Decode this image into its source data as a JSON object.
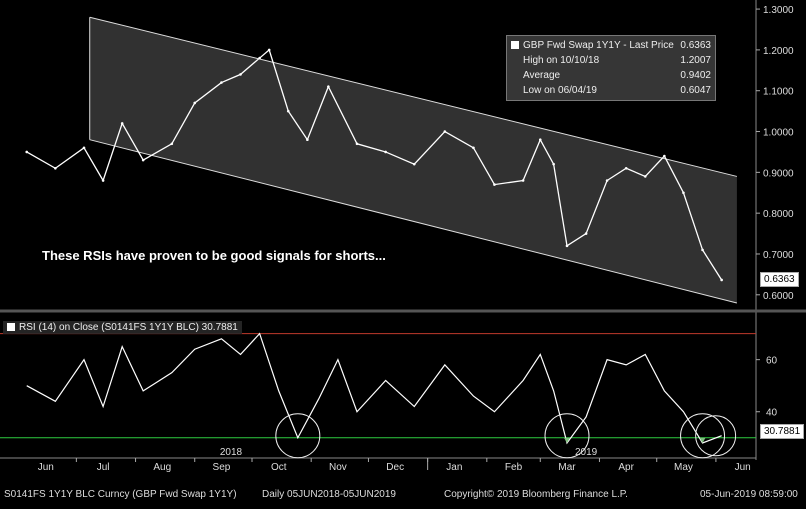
{
  "chart_data": [
    {
      "type": "line",
      "title": "GBP Fwd Swap 1Y1Y - Last Price 0.6363",
      "series": [
        {
          "name": "GBP Fwd Swap 1Y1Y - Last Price",
          "x": [
            "2018-06-05",
            "2018-06-20",
            "2018-07-05",
            "2018-07-15",
            "2018-07-25",
            "2018-08-05",
            "2018-08-20",
            "2018-09-01",
            "2018-09-15",
            "2018-09-25",
            "2018-10-05",
            "2018-10-10",
            "2018-10-20",
            "2018-10-30",
            "2018-11-10",
            "2018-11-25",
            "2018-12-10",
            "2018-12-25",
            "2019-01-10",
            "2019-01-25",
            "2019-02-05",
            "2019-02-20",
            "2019-03-01",
            "2019-03-08",
            "2019-03-15",
            "2019-03-25",
            "2019-04-05",
            "2019-04-15",
            "2019-04-25",
            "2019-05-05",
            "2019-05-15",
            "2019-05-25",
            "2019-06-04"
          ],
          "values": [
            0.95,
            0.91,
            0.96,
            0.88,
            1.02,
            0.93,
            0.97,
            1.07,
            1.12,
            1.14,
            1.18,
            1.2,
            1.05,
            0.98,
            1.11,
            0.97,
            0.95,
            0.92,
            1.0,
            0.96,
            0.87,
            0.88,
            0.98,
            0.92,
            0.72,
            0.75,
            0.88,
            0.91,
            0.89,
            0.94,
            0.85,
            0.71,
            0.6363
          ]
        }
      ],
      "stats": {
        "high": "1.2007",
        "high_date": "10/10/18",
        "average": "0.9402",
        "low": "0.6047",
        "low_date": "06/04/19",
        "last": "0.6363"
      },
      "channel": {
        "upper": [
          [
            "2018-07-08",
            1.28
          ],
          [
            "2019-06-12",
            0.89
          ]
        ],
        "lower": [
          [
            "2018-07-08",
            0.98
          ],
          [
            "2019-06-12",
            0.58
          ]
        ]
      },
      "ylim": [
        0.575,
        1.31
      ],
      "yticks": [
        "1.3000",
        "1.2000",
        "1.1000",
        "1.0000",
        "0.9000",
        "0.8000",
        "0.7000",
        "0.6000"
      ],
      "ytick_values": [
        1.3,
        1.2,
        1.1,
        1.0,
        0.9,
        0.8,
        0.7,
        0.6
      ],
      "annotation": "These RSIs have proven to be good signals for shorts...",
      "xlabel": "",
      "ylabel": ""
    },
    {
      "type": "line",
      "title": "RSI (14)  on Close (S0141FS 1Y1Y BLC) 30.7881",
      "series": [
        {
          "name": "RSI (14) on Close (S0141FS 1Y1Y BLC)",
          "x": [
            "2018-06-05",
            "2018-06-20",
            "2018-07-05",
            "2018-07-15",
            "2018-07-25",
            "2018-08-05",
            "2018-08-20",
            "2018-09-01",
            "2018-09-15",
            "2018-09-25",
            "2018-10-05",
            "2018-10-15",
            "2018-10-25",
            "2018-11-05",
            "2018-11-15",
            "2018-11-25",
            "2018-12-10",
            "2018-12-25",
            "2019-01-10",
            "2019-01-25",
            "2019-02-05",
            "2019-02-20",
            "2019-03-01",
            "2019-03-08",
            "2019-03-15",
            "2019-03-25",
            "2019-04-05",
            "2019-04-15",
            "2019-04-25",
            "2019-05-05",
            "2019-05-15",
            "2019-05-25",
            "2019-06-04"
          ],
          "values": [
            50,
            44,
            60,
            42,
            65,
            48,
            55,
            64,
            68,
            62,
            70,
            48,
            30,
            45,
            60,
            40,
            52,
            42,
            58,
            46,
            40,
            52,
            62,
            48,
            28,
            38,
            60,
            58,
            62,
            48,
            40,
            28,
            30.7881
          ]
        }
      ],
      "overbought": 70,
      "oversold": 30,
      "last": "30.7881",
      "ylim": [
        23,
        76
      ],
      "yticks": [
        "60",
        "40"
      ],
      "ytick_values": [
        60,
        40
      ]
    }
  ],
  "x_months": [
    "Jun",
    "Jul",
    "Aug",
    "Sep",
    "Oct",
    "Nov",
    "Dec",
    "Jan",
    "Feb",
    "Mar",
    "Apr",
    "May",
    "Jun"
  ],
  "x_years": [
    "2018",
    "2019"
  ],
  "legend": {
    "title": "GBP Fwd Swap 1Y1Y - Last Price",
    "title_value": "0.6363",
    "rows": [
      {
        "label": "High on 10/10/18",
        "value": "1.2007"
      },
      {
        "label": "Average",
        "value": "0.9402"
      },
      {
        "label": "Low on 06/04/19",
        "value": "0.6047"
      }
    ]
  },
  "footer": {
    "ticker": "S0141FS 1Y1Y BLC Curncy (GBP Fwd Swap 1Y1Y)",
    "range": "Daily 05JUN2018-05JUN2019",
    "copyright": "Copyright© 2019 Bloomberg Finance L.P.",
    "timestamp": "05-Jun-2019 08:59:00"
  },
  "colors": {
    "background": "#000000",
    "price": "#ffffff",
    "channel_fill": "#3a3a3a",
    "overbought": "#c0392b",
    "oversold": "#2ecc40",
    "rsi_fill_low": "#7fbf7f"
  }
}
